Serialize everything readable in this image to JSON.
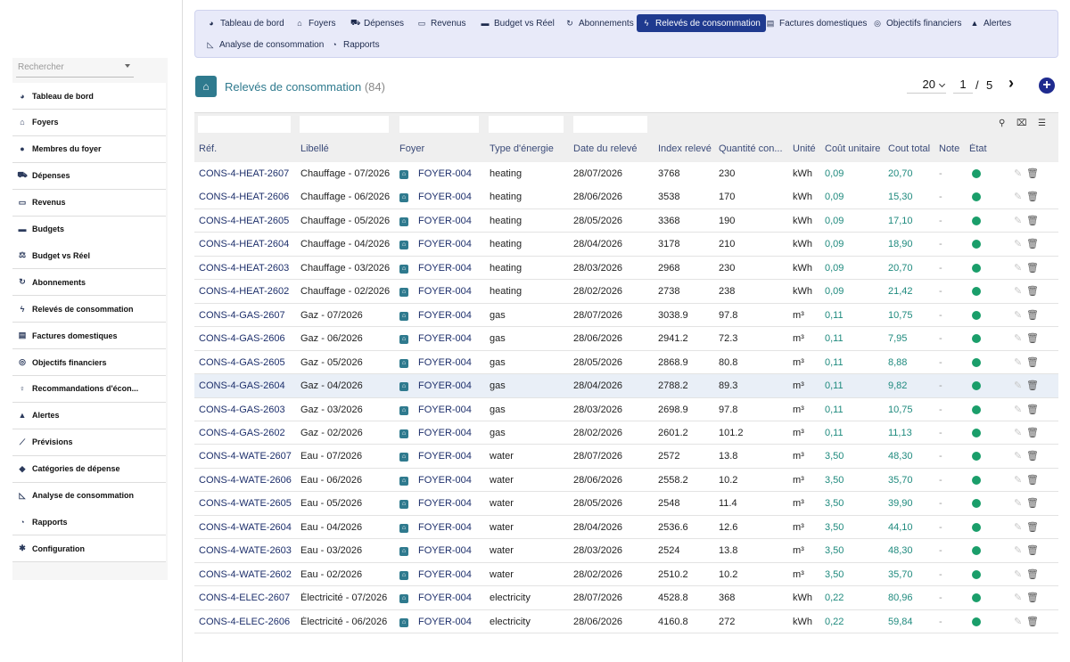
{
  "sidebar": {
    "search_placeholder": "Rechercher",
    "items": [
      {
        "label": "Tableau de bord",
        "icon": "dashboard-icon",
        "glyph": "◕"
      },
      {
        "label": "Foyers",
        "icon": "home-icon",
        "glyph": "⌂"
      },
      {
        "label": "Membres du foyer",
        "icon": "user-icon",
        "glyph": "●"
      },
      {
        "label": "Dépenses",
        "icon": "cart-icon",
        "glyph": "⛟"
      },
      {
        "label": "Revenus",
        "icon": "money-icon",
        "glyph": "▭"
      },
      {
        "label": "Budgets",
        "icon": "wallet-icon",
        "glyph": "▬"
      },
      {
        "label": "Budget vs Réel",
        "icon": "balance-icon",
        "glyph": "⚖"
      },
      {
        "label": "Abonnements",
        "icon": "sync-icon",
        "glyph": "↻"
      },
      {
        "label": "Relevés de consommation",
        "icon": "bolt-icon",
        "glyph": "ϟ"
      },
      {
        "label": "Factures domestiques",
        "icon": "invoice-icon",
        "glyph": "▤"
      },
      {
        "label": "Objectifs financiers",
        "icon": "target-icon",
        "glyph": "◎"
      },
      {
        "label": "Recommandations d'écon...",
        "icon": "lightbulb-icon",
        "glyph": "♀"
      },
      {
        "label": "Alertes",
        "icon": "bell-icon",
        "glyph": "▲"
      },
      {
        "label": "Prévisions",
        "icon": "chart-line-icon",
        "glyph": "⟋"
      },
      {
        "label": "Catégories de dépense",
        "icon": "tags-icon",
        "glyph": "◆"
      },
      {
        "label": "Analyse de consommation",
        "icon": "chart-area-icon",
        "glyph": "◺"
      },
      {
        "label": "Rapports",
        "icon": "pie-chart-icon",
        "glyph": "◔"
      },
      {
        "label": "Configuration",
        "icon": "gear-icon",
        "glyph": "✱"
      }
    ]
  },
  "topnav": {
    "tabs": [
      {
        "label": "Tableau de bord",
        "icon": "dashboard-icon",
        "glyph": "◕"
      },
      {
        "label": "Foyers",
        "icon": "home-icon",
        "glyph": "⌂"
      },
      {
        "label": "Dépenses",
        "icon": "cart-icon",
        "glyph": "⛟"
      },
      {
        "label": "Revenus",
        "icon": "money-icon",
        "glyph": "▭"
      },
      {
        "label": "Budget vs Réel",
        "icon": "wallet-icon",
        "glyph": "▬"
      },
      {
        "label": "Abonnements",
        "icon": "sync-icon",
        "glyph": "↻"
      },
      {
        "label": "Relevés de consommation",
        "icon": "bolt-icon",
        "glyph": "ϟ",
        "active": true
      },
      {
        "label": "Factures domestiques",
        "icon": "invoice-icon",
        "glyph": "▤"
      },
      {
        "label": "Objectifs financiers",
        "icon": "target-icon",
        "glyph": "◎"
      },
      {
        "label": "Alertes",
        "icon": "bell-icon",
        "glyph": "▲"
      },
      {
        "label": "Analyse de consommation",
        "icon": "chart-area-icon",
        "glyph": "◺"
      },
      {
        "label": "Rapports",
        "icon": "pie-chart-icon",
        "glyph": "◔"
      }
    ]
  },
  "header": {
    "title": "Relevés de consommation",
    "count": "(84)",
    "page_size": "20",
    "page_current": "1",
    "page_sep": "/",
    "page_total": "5",
    "next_glyph": "›",
    "add_glyph": "+"
  },
  "table": {
    "columns": [
      "Réf.",
      "Libellé",
      "Foyer",
      "Type d'énergie",
      "Date du relevé",
      "Index relevé",
      "Quantité con...",
      "Unité",
      "Coût unitaire",
      "Cout total",
      "Note",
      "État"
    ],
    "rows": [
      [
        "CONS-4-HEAT-2607",
        "Chauffage - 07/2026",
        "FOYER-004",
        "heating",
        "28/07/2026",
        "3768",
        "230",
        "kWh",
        "0,09",
        "20,70",
        "-"
      ],
      [
        "CONS-4-HEAT-2606",
        "Chauffage - 06/2026",
        "FOYER-004",
        "heating",
        "28/06/2026",
        "3538",
        "170",
        "kWh",
        "0,09",
        "15,30",
        "-"
      ],
      [
        "CONS-4-HEAT-2605",
        "Chauffage - 05/2026",
        "FOYER-004",
        "heating",
        "28/05/2026",
        "3368",
        "190",
        "kWh",
        "0,09",
        "17,10",
        "-"
      ],
      [
        "CONS-4-HEAT-2604",
        "Chauffage - 04/2026",
        "FOYER-004",
        "heating",
        "28/04/2026",
        "3178",
        "210",
        "kWh",
        "0,09",
        "18,90",
        "-"
      ],
      [
        "CONS-4-HEAT-2603",
        "Chauffage - 03/2026",
        "FOYER-004",
        "heating",
        "28/03/2026",
        "2968",
        "230",
        "kWh",
        "0,09",
        "20,70",
        "-"
      ],
      [
        "CONS-4-HEAT-2602",
        "Chauffage - 02/2026",
        "FOYER-004",
        "heating",
        "28/02/2026",
        "2738",
        "238",
        "kWh",
        "0,09",
        "21,42",
        "-"
      ],
      [
        "CONS-4-GAS-2607",
        "Gaz - 07/2026",
        "FOYER-004",
        "gas",
        "28/07/2026",
        "3038.9",
        "97.8",
        "m³",
        "0,11",
        "10,75",
        "-"
      ],
      [
        "CONS-4-GAS-2606",
        "Gaz - 06/2026",
        "FOYER-004",
        "gas",
        "28/06/2026",
        "2941.2",
        "72.3",
        "m³",
        "0,11",
        "7,95",
        "-"
      ],
      [
        "CONS-4-GAS-2605",
        "Gaz - 05/2026",
        "FOYER-004",
        "gas",
        "28/05/2026",
        "2868.9",
        "80.8",
        "m³",
        "0,11",
        "8,88",
        "-"
      ],
      [
        "CONS-4-GAS-2604",
        "Gaz - 04/2026",
        "FOYER-004",
        "gas",
        "28/04/2026",
        "2788.2",
        "89.3",
        "m³",
        "0,11",
        "9,82",
        "-"
      ],
      [
        "CONS-4-GAS-2603",
        "Gaz - 03/2026",
        "FOYER-004",
        "gas",
        "28/03/2026",
        "2698.9",
        "97.8",
        "m³",
        "0,11",
        "10,75",
        "-"
      ],
      [
        "CONS-4-GAS-2602",
        "Gaz - 02/2026",
        "FOYER-004",
        "gas",
        "28/02/2026",
        "2601.2",
        "101.2",
        "m³",
        "0,11",
        "11,13",
        "-"
      ],
      [
        "CONS-4-WATE-2607",
        "Eau - 07/2026",
        "FOYER-004",
        "water",
        "28/07/2026",
        "2572",
        "13.8",
        "m³",
        "3,50",
        "48,30",
        "-"
      ],
      [
        "CONS-4-WATE-2606",
        "Eau - 06/2026",
        "FOYER-004",
        "water",
        "28/06/2026",
        "2558.2",
        "10.2",
        "m³",
        "3,50",
        "35,70",
        "-"
      ],
      [
        "CONS-4-WATE-2605",
        "Eau - 05/2026",
        "FOYER-004",
        "water",
        "28/05/2026",
        "2548",
        "11.4",
        "m³",
        "3,50",
        "39,90",
        "-"
      ],
      [
        "CONS-4-WATE-2604",
        "Eau - 04/2026",
        "FOYER-004",
        "water",
        "28/04/2026",
        "2536.6",
        "12.6",
        "m³",
        "3,50",
        "44,10",
        "-"
      ],
      [
        "CONS-4-WATE-2603",
        "Eau - 03/2026",
        "FOYER-004",
        "water",
        "28/03/2026",
        "2524",
        "13.8",
        "m³",
        "3,50",
        "48,30",
        "-"
      ],
      [
        "CONS-4-WATE-2602",
        "Eau - 02/2026",
        "FOYER-004",
        "water",
        "28/02/2026",
        "2510.2",
        "10.2",
        "m³",
        "3,50",
        "35,70",
        "-"
      ],
      [
        "CONS-4-ELEC-2607",
        "Électricité - 07/2026",
        "FOYER-004",
        "electricity",
        "28/07/2026",
        "4528.8",
        "368",
        "kWh",
        "0,22",
        "80,96",
        "-"
      ],
      [
        "CONS-4-ELEC-2606",
        "Électricité - 06/2026",
        "FOYER-004",
        "electricity",
        "28/06/2026",
        "4160.8",
        "272",
        "kWh",
        "0,22",
        "59,84",
        "-"
      ]
    ],
    "highlighted_row": 9
  },
  "colors": {
    "accent": "#1f3a8f",
    "title": "#2f7a8e",
    "status_ok": "#1a9e6a",
    "number": "#1f8a7e"
  }
}
